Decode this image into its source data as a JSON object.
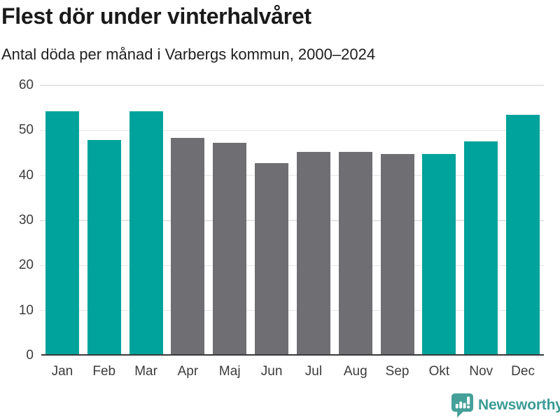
{
  "header": {
    "title": "Flest dör under vinterhalvåret",
    "subtitle": "Antal döda per månad i Varbergs kommun, 2000–2024"
  },
  "chart_data": {
    "type": "bar",
    "title": "Flest dör under vinterhalvåret",
    "subtitle": "Antal döda per månad i Varbergs kommun, 2000–2024",
    "categories": [
      "Jan",
      "Feb",
      "Mar",
      "Apr",
      "Maj",
      "Jun",
      "Jul",
      "Aug",
      "Sep",
      "Okt",
      "Nov",
      "Dec"
    ],
    "values": [
      54,
      47.5,
      54,
      48.1,
      46.9,
      42.4,
      45,
      44.9,
      44.4,
      44.4,
      47.2,
      53.2
    ],
    "highlighted": [
      true,
      true,
      true,
      false,
      false,
      false,
      false,
      false,
      false,
      true,
      true,
      true
    ],
    "xlabel": "",
    "ylabel": "",
    "ylim": [
      0,
      60
    ],
    "yticks": [
      0,
      10,
      20,
      30,
      40,
      50,
      60
    ],
    "grid": "horizontal-only",
    "legend": "none",
    "colors": {
      "highlight": "#00a39b",
      "base": "#6e6e73"
    }
  },
  "footer": {
    "brand": "Newsworthy",
    "logo_icon": "newsworthy-speech-bubble-barchart-icon",
    "brand_color": "#3b9b94",
    "icon_color": "#45a099"
  },
  "theme": {
    "background": "#ffffff",
    "gridline": "#e5e5e5",
    "axis_line": "#3a3a3a",
    "tick_text": "#3c3c3c",
    "title_text": "#1a1a1a"
  }
}
